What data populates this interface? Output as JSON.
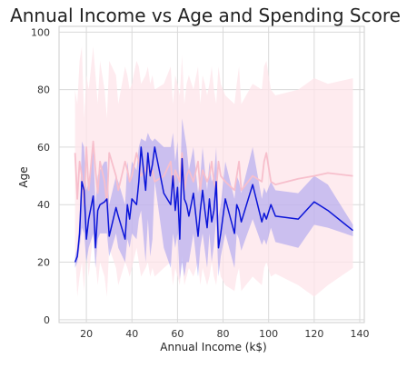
{
  "chart_data": {
    "type": "line",
    "title": "Annual Income vs Age and Spending Score",
    "xlabel": "Annual Income (k$)",
    "ylabel": "Age",
    "xlim": [
      8,
      142
    ],
    "ylim": [
      -1,
      102
    ],
    "xticks": [
      "20",
      "40",
      "60",
      "80",
      "100",
      "120",
      "140"
    ],
    "yticks": [
      "0",
      "20",
      "40",
      "60",
      "80",
      "100"
    ],
    "grid": true,
    "series": [
      {
        "color": "#0a14d8",
        "band_color": "#6e6ef0",
        "band_opacity": 0.35,
        "x": [
          15,
          16,
          17,
          18,
          19,
          20,
          21,
          23,
          24,
          25,
          26,
          28,
          29,
          30,
          33,
          34,
          37,
          38,
          39,
          40,
          42,
          43,
          44,
          46,
          47,
          48,
          49,
          50,
          54,
          57,
          58,
          59,
          60,
          61,
          62,
          63,
          64,
          65,
          67,
          69,
          70,
          71,
          72,
          73,
          74,
          75,
          76,
          77,
          78,
          79,
          81,
          85,
          86,
          87,
          88,
          93,
          97,
          98,
          99,
          101,
          103,
          113,
          120,
          126,
          137
        ],
        "y": [
          20,
          22,
          30,
          48,
          45,
          28,
          35,
          43,
          25,
          38,
          40,
          41,
          42,
          29,
          39,
          36,
          28,
          40,
          35,
          42,
          40,
          48,
          60,
          45,
          58,
          50,
          54,
          60,
          44,
          40,
          50,
          38,
          46,
          28,
          56,
          42,
          40,
          36,
          44,
          29,
          38,
          45,
          38,
          32,
          42,
          34,
          38,
          48,
          25,
          30,
          42,
          30,
          40,
          38,
          34,
          47,
          34,
          37,
          35,
          40,
          36,
          35,
          41,
          38,
          31
        ],
        "lo": [
          18,
          20,
          25,
          32,
          30,
          20,
          25,
          30,
          18,
          28,
          30,
          30,
          30,
          22,
          30,
          25,
          20,
          28,
          25,
          30,
          28,
          35,
          38,
          20,
          35,
          22,
          28,
          48,
          25,
          18,
          30,
          25,
          30,
          14,
          20,
          15,
          20,
          20,
          30,
          15,
          25,
          30,
          24,
          18,
          30,
          20,
          26,
          35,
          15,
          22,
          30,
          18,
          30,
          28,
          24,
          35,
          26,
          28,
          26,
          32,
          27,
          25,
          33,
          32,
          29
        ],
        "hi": [
          22,
          25,
          35,
          62,
          60,
          45,
          48,
          60,
          40,
          50,
          52,
          55,
          55,
          40,
          50,
          48,
          40,
          55,
          48,
          55,
          52,
          60,
          63,
          62,
          65,
          63,
          62,
          63,
          60,
          60,
          65,
          55,
          62,
          44,
          70,
          65,
          60,
          52,
          60,
          44,
          50,
          60,
          52,
          45,
          55,
          48,
          50,
          60,
          36,
          40,
          55,
          42,
          50,
          48,
          44,
          60,
          42,
          46,
          44,
          48,
          45,
          44,
          50,
          47,
          33
        ]
      },
      {
        "color": "#f7bfcc",
        "band_color": "#fde4e9",
        "band_opacity": 0.75,
        "x": [
          15,
          16,
          17,
          18,
          19,
          20,
          21,
          23,
          24,
          25,
          26,
          28,
          29,
          30,
          33,
          34,
          37,
          38,
          39,
          40,
          42,
          43,
          44,
          46,
          47,
          48,
          49,
          50,
          54,
          57,
          58,
          59,
          60,
          61,
          62,
          63,
          64,
          65,
          67,
          69,
          70,
          71,
          72,
          73,
          74,
          75,
          76,
          77,
          78,
          79,
          81,
          85,
          86,
          87,
          88,
          93,
          97,
          98,
          99,
          101,
          103,
          113,
          120,
          126,
          137
        ],
        "y": [
          58,
          42,
          55,
          50,
          40,
          60,
          45,
          62,
          52,
          44,
          55,
          48,
          40,
          58,
          50,
          45,
          55,
          52,
          48,
          50,
          58,
          55,
          50,
          52,
          55,
          50,
          52,
          48,
          50,
          55,
          45,
          52,
          50,
          48,
          58,
          45,
          50,
          52,
          48,
          55,
          45,
          52,
          50,
          48,
          50,
          55,
          48,
          45,
          55,
          50,
          48,
          45,
          50,
          55,
          45,
          50,
          48,
          55,
          58,
          48,
          47,
          49,
          50,
          51,
          50
        ],
        "lo": [
          25,
          8,
          15,
          20,
          10,
          25,
          15,
          30,
          20,
          12,
          20,
          15,
          8,
          25,
          18,
          12,
          20,
          18,
          15,
          18,
          25,
          20,
          15,
          18,
          20,
          15,
          18,
          15,
          18,
          20,
          12,
          18,
          15,
          12,
          22,
          12,
          15,
          18,
          15,
          20,
          12,
          18,
          15,
          12,
          15,
          20,
          15,
          12,
          20,
          15,
          12,
          10,
          15,
          18,
          10,
          15,
          12,
          18,
          20,
          15,
          16,
          12,
          8,
          12,
          18
        ],
        "hi": [
          80,
          75,
          90,
          95,
          70,
          85,
          80,
          95,
          85,
          75,
          90,
          80,
          70,
          90,
          85,
          75,
          88,
          85,
          80,
          82,
          90,
          88,
          82,
          85,
          88,
          82,
          85,
          80,
          82,
          88,
          75,
          85,
          82,
          78,
          92,
          75,
          82,
          85,
          80,
          88,
          75,
          85,
          82,
          78,
          82,
          88,
          80,
          75,
          88,
          82,
          78,
          75,
          82,
          88,
          75,
          82,
          80,
          88,
          90,
          80,
          78,
          80,
          84,
          82,
          84
        ]
      }
    ]
  }
}
